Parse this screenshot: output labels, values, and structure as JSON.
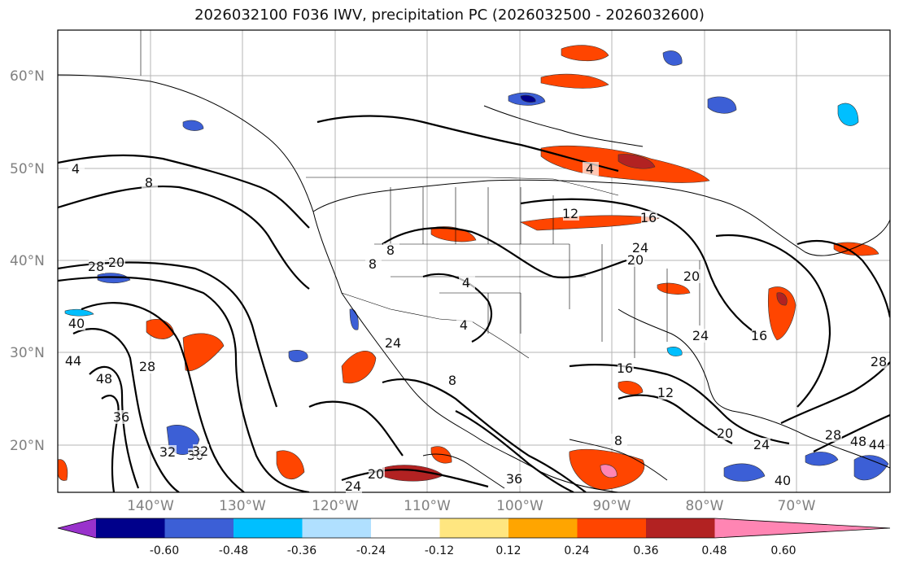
{
  "title": "2026032100 F036 IWV, precipitation PC (2026032500 - 2026032600)",
  "lat_labels": [
    "60°N",
    "50°N",
    "40°N",
    "30°N",
    "20°N"
  ],
  "lon_labels": [
    "140°W",
    "130°W",
    "120°W",
    "110°W",
    "100°W",
    "90°W",
    "80°W",
    "70°W"
  ],
  "contour_labels": [
    "4",
    "8",
    "4",
    "8",
    "4",
    "12",
    "16",
    "20",
    "24",
    "20",
    "28",
    "20",
    "32",
    "36",
    "40",
    "44",
    "48",
    "28",
    "36",
    "32",
    "24",
    "20",
    "24",
    "36",
    "16",
    "12",
    "8",
    "24",
    "16",
    "20",
    "24",
    "28",
    "40",
    "44",
    "48",
    "28",
    "8",
    "4",
    "8"
  ],
  "colorbar": {
    "ticks": [
      "-0.60",
      "-0.48",
      "-0.36",
      "-0.24",
      "-0.12",
      "0.12",
      "0.24",
      "0.36",
      "0.48",
      "0.60"
    ],
    "colors": [
      "#9932cc",
      "#00008b",
      "#3c5fd6",
      "#00bfff",
      "#b0e0ff",
      "#ffffff",
      "#ffe680",
      "#ffa500",
      "#ff4500",
      "#b22222",
      "#ff85b3"
    ]
  }
}
